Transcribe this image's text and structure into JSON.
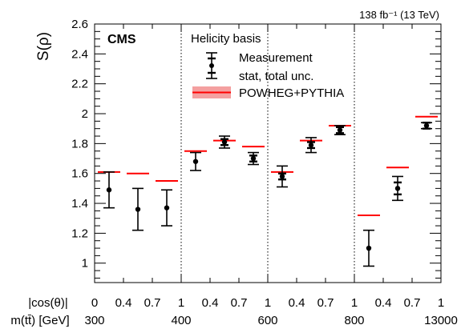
{
  "header": {
    "lumi_label": "138 fb⁻¹ (13 TeV)",
    "experiment": "CMS",
    "basis_label": "Helicity basis"
  },
  "legend": {
    "measurement_label": "Measurement",
    "unc_label": "stat, total unc.",
    "prediction_label": "POWHEG+PYTHIA"
  },
  "axes": {
    "ylabel": "S(ρ)",
    "row1_label": "|cos(θ)|",
    "row2_label": "m(tt̄) [GeV]"
  },
  "colors": {
    "prediction": "#ff0000",
    "prediction_band": "#f4a0a0",
    "measurement": "#000000",
    "separator": "#000000"
  },
  "chart_data": {
    "type": "scatter",
    "ylabel": "S(ρ)",
    "ylim": [
      0.87,
      2.6
    ],
    "yticks": [
      1,
      1.2,
      1.4,
      1.6,
      1.8,
      2,
      2.2,
      2.4,
      2.6
    ],
    "cos_theta_tick_labels": [
      "0",
      "0.4",
      "0.7",
      "1",
      "0.4",
      "0.7",
      "1",
      "0.4",
      "0.7",
      "1",
      "0.4",
      "0.7",
      "1"
    ],
    "mass_edge_labels": [
      "300",
      "400",
      "600",
      "800",
      "13000"
    ],
    "bins": 12,
    "series": [
      {
        "name": "Measurement",
        "values": [
          1.49,
          1.36,
          1.37,
          1.68,
          1.81,
          1.7,
          1.58,
          1.79,
          1.89,
          1.1,
          1.5,
          1.92
        ],
        "stat_unc": [
          0.0,
          0.0,
          0.0,
          0.0,
          0.02,
          0.02,
          0.02,
          0.02,
          0.02,
          0.0,
          0.04,
          0.02
        ],
        "total_unc": [
          0.12,
          0.14,
          0.12,
          0.06,
          0.04,
          0.04,
          0.07,
          0.05,
          0.03,
          0.12,
          0.08,
          0.02
        ]
      },
      {
        "name": "POWHEG+PYTHIA",
        "values": [
          1.61,
          1.6,
          1.55,
          1.75,
          1.82,
          1.78,
          1.61,
          1.82,
          1.92,
          1.32,
          1.64,
          1.98
        ]
      }
    ]
  }
}
